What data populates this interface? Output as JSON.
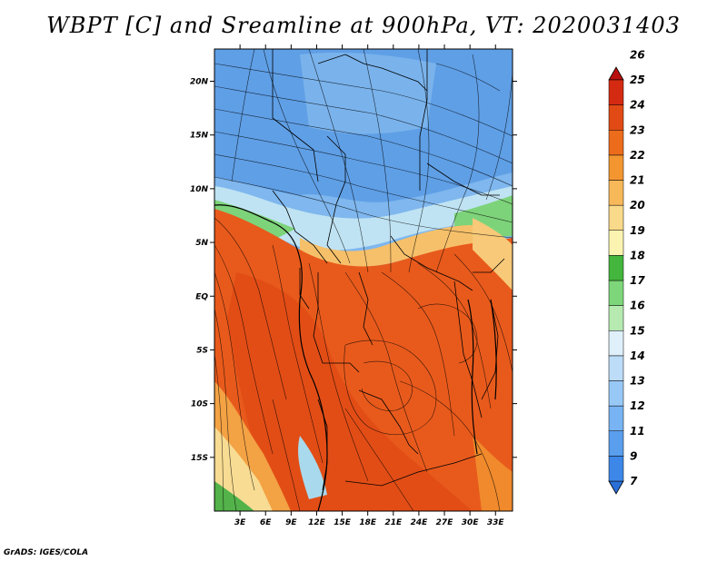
{
  "title": "WBPT [C] and Sreamline at 900hPa, VT: 2020031403",
  "credit": "GrADS: IGES/COLA",
  "map": {
    "region": "Central and Southern Africa",
    "lon_range": [
      0,
      35
    ],
    "lat_range": [
      -20,
      23
    ],
    "lat_ticks": [
      "20N",
      "15N",
      "10N",
      "5N",
      "EQ",
      "5S",
      "10S",
      "15S"
    ],
    "lat_values": [
      20,
      15,
      10,
      5,
      0,
      -5,
      -10,
      -15
    ],
    "lon_ticks": [
      "3E",
      "6E",
      "9E",
      "12E",
      "15E",
      "18E",
      "21E",
      "24E",
      "27E",
      "30E",
      "33E"
    ],
    "lon_values": [
      3,
      6,
      9,
      12,
      15,
      18,
      21,
      24,
      27,
      30,
      33
    ]
  },
  "colorbar": {
    "labels": [
      "7",
      "9",
      "11",
      "12",
      "13",
      "14",
      "15",
      "16",
      "17",
      "18",
      "19",
      "20",
      "21",
      "22",
      "23",
      "24",
      "25",
      "26"
    ],
    "colors": [
      "#2a6fd8",
      "#3d87e8",
      "#5a9eee",
      "#78b4f3",
      "#98c8f6",
      "#bcdcf8",
      "#dff0fb",
      "#b6eab0",
      "#7ed67a",
      "#44b63d",
      "#fbf3b0",
      "#f9d98a",
      "#f7b85a",
      "#f39630",
      "#ec6c1c",
      "#e14a15",
      "#d42a12",
      "#b90f0f"
    ]
  }
}
